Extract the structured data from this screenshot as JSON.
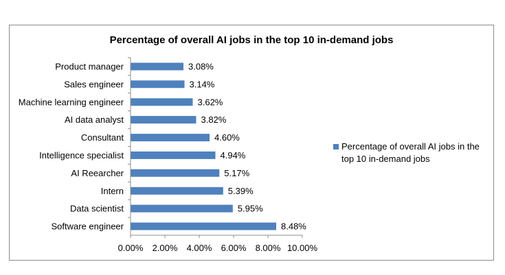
{
  "chart_data": {
    "type": "bar",
    "orientation": "horizontal",
    "title": "Percentage of overall AI jobs in the top 10 in-demand jobs",
    "categories": [
      "Product manager",
      "Sales engineer",
      "Machine learning engineer",
      "AI data analyst",
      "Consultant",
      "Intelligence specialist",
      "AI Reearcher",
      "Intern",
      "Data scientist",
      "Software engineer"
    ],
    "series": [
      {
        "name": "Percentage of overall AI jobs in the top 10 in-demand jobs",
        "values": [
          3.08,
          3.14,
          3.62,
          3.82,
          4.6,
          4.94,
          5.17,
          5.39,
          5.95,
          8.48
        ],
        "value_labels": [
          "3.08%",
          "3.14%",
          "3.62%",
          "3.82%",
          "4.60%",
          "4.94%",
          "5.17%",
          "5.39%",
          "5.95%",
          "8.48%"
        ],
        "color": "#4f81bd"
      }
    ],
    "x_ticks": [
      "0.00%",
      "2.00%",
      "4.00%",
      "6.00%",
      "8.00%",
      "10.00%"
    ],
    "xlim": [
      0,
      10
    ],
    "xlabel": "",
    "ylabel": "",
    "grid": false,
    "legend": {
      "position": "right",
      "label_lines": [
        "Percentage of overall AI jobs in the",
        "top 10 in-demand jobs"
      ]
    }
  }
}
